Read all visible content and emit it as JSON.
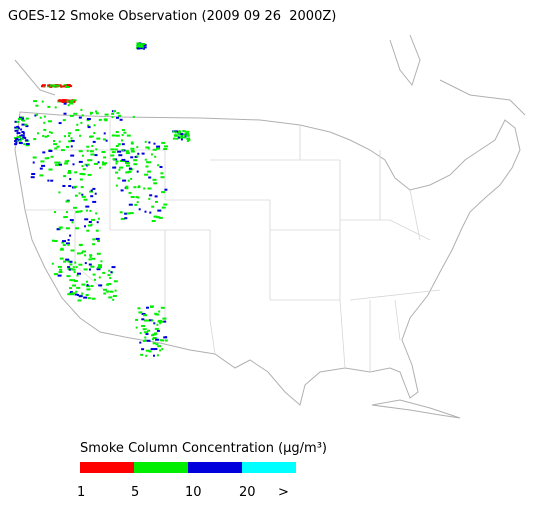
{
  "title": "GOES-12 Smoke Observation (2009 09 26  2000Z)",
  "legend": {
    "title": "Smoke Column Concentration (μg/m³)",
    "colors": [
      "#ff0000",
      "#00ee00",
      "#0000dd",
      "#00ffff"
    ],
    "ticks": [
      1,
      5,
      10,
      20
    ],
    "overflow": ">"
  }
}
